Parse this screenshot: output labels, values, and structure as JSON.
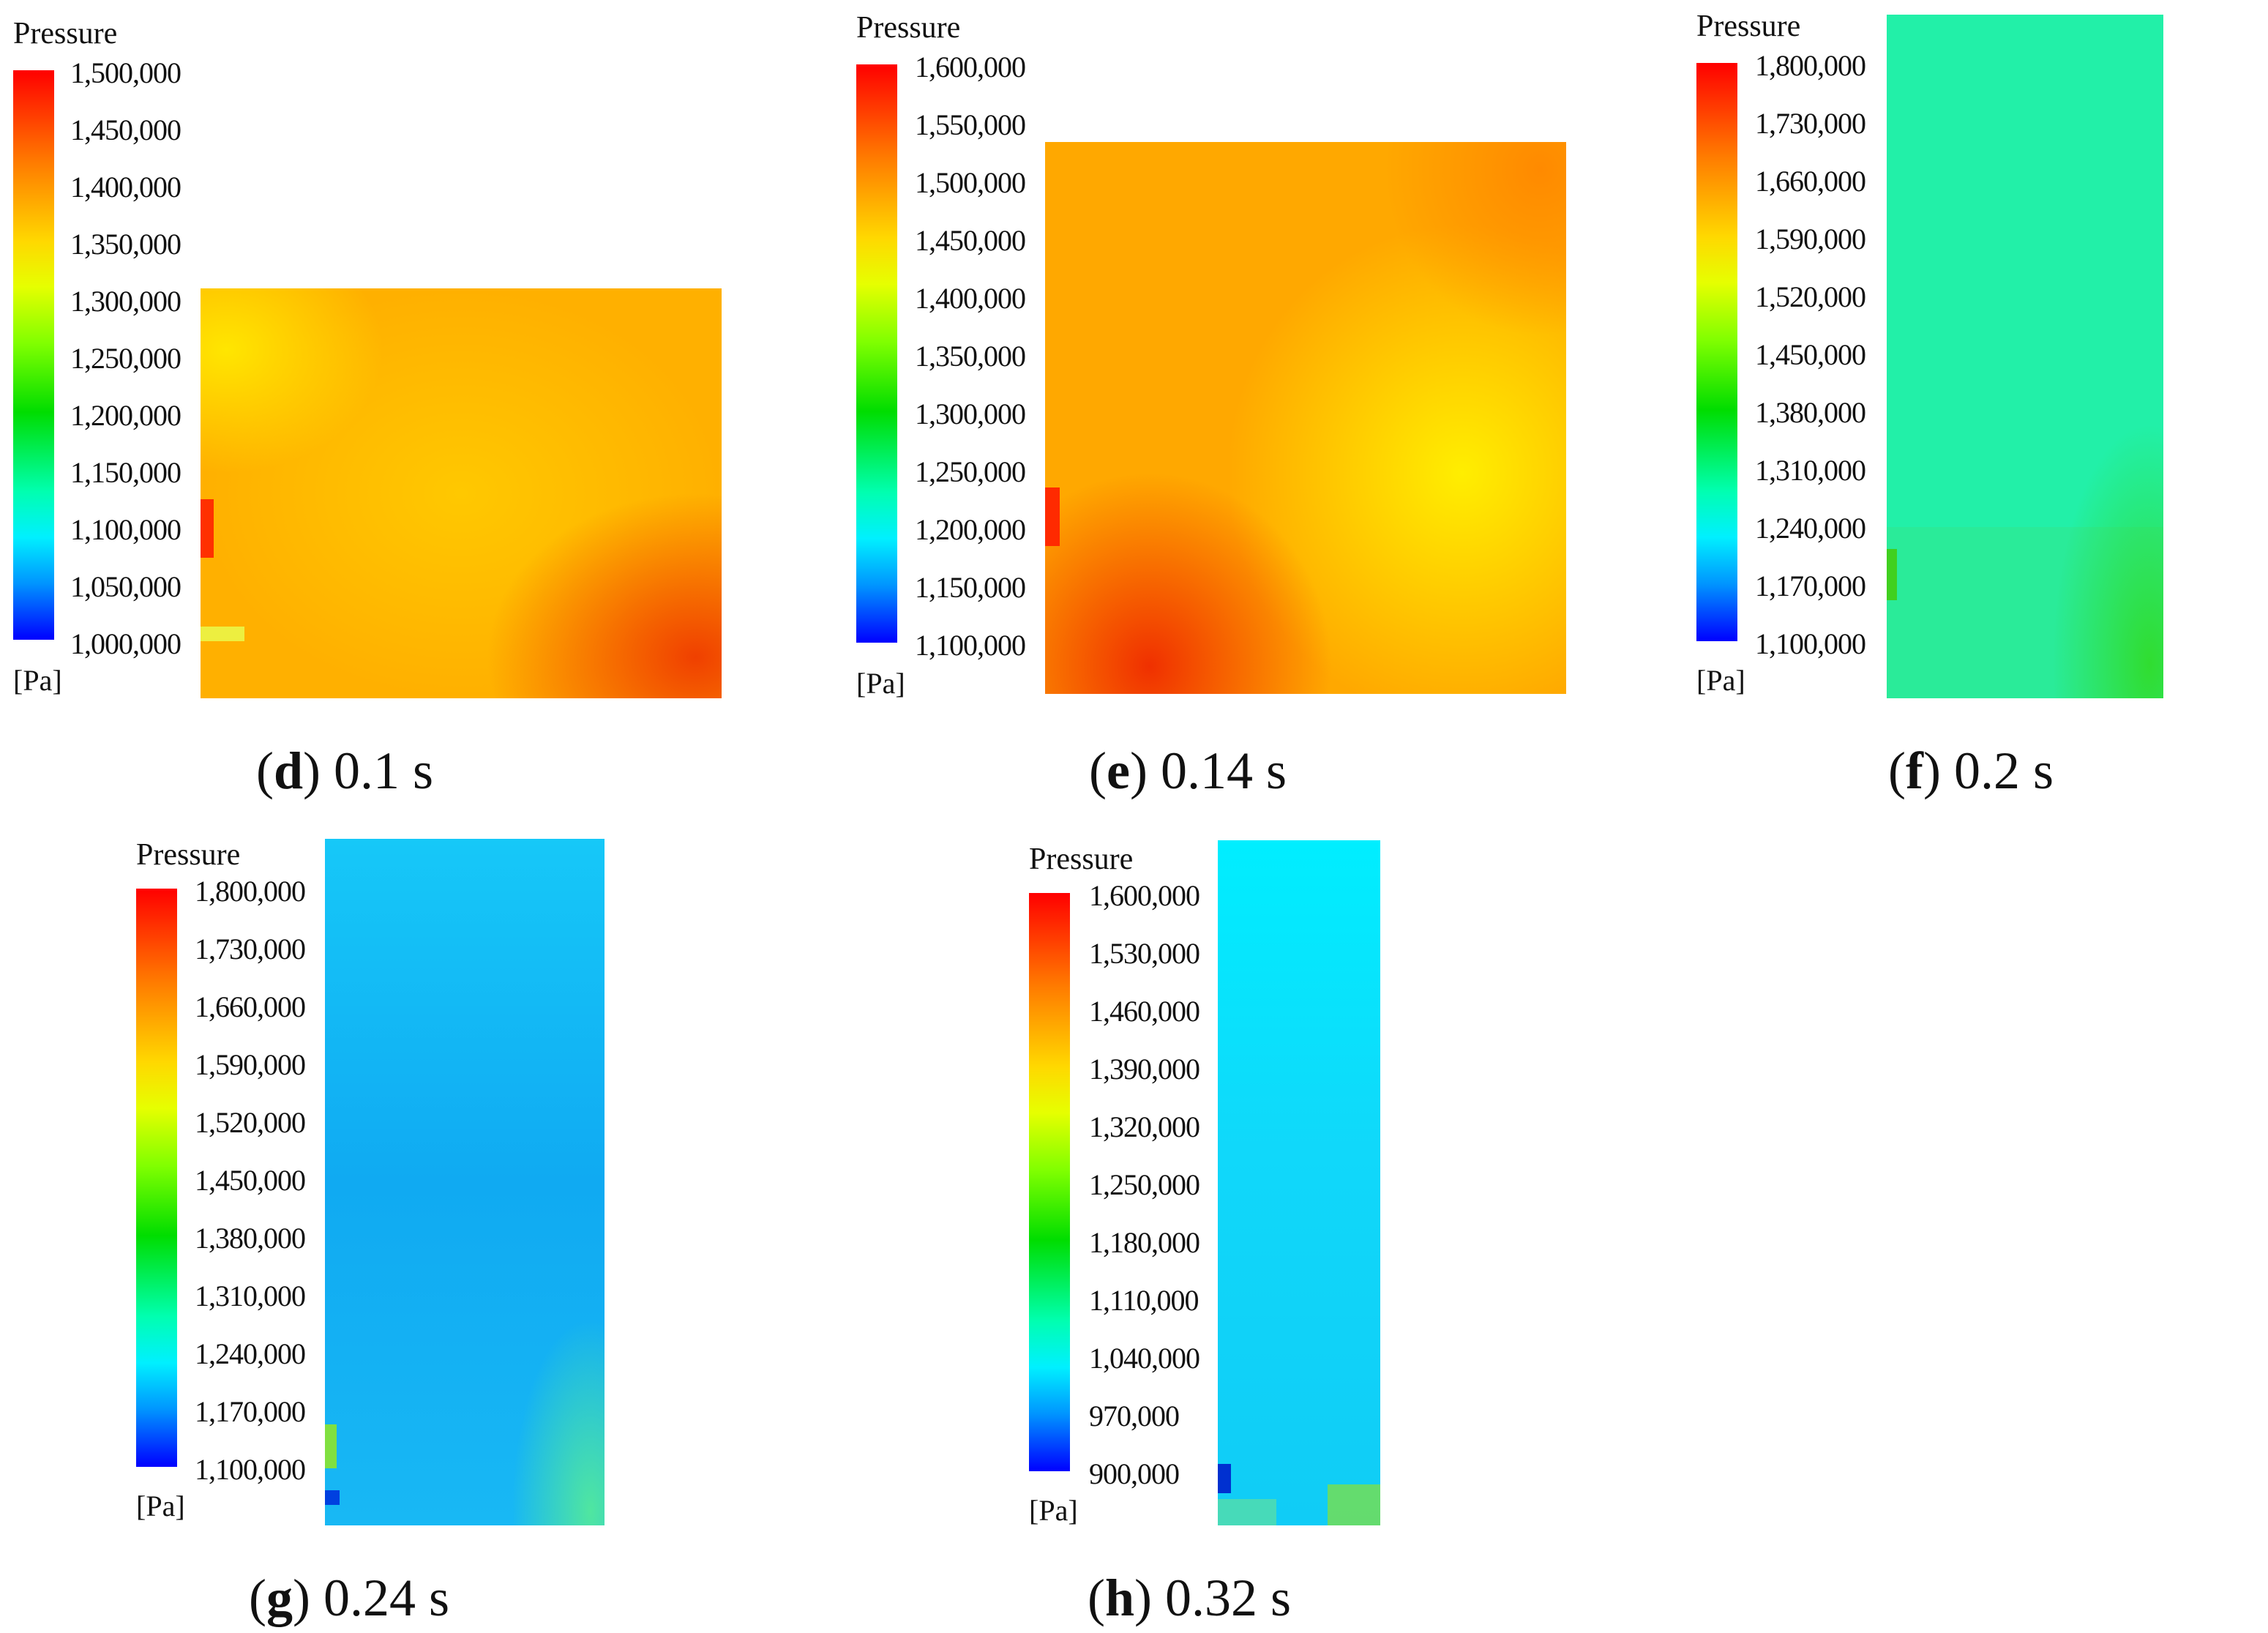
{
  "panels": [
    {
      "id": "d",
      "legend_title": "Pressure",
      "unit": "[Pa]",
      "ticks": [
        "1,500,000",
        "1,450,000",
        "1,400,000",
        "1,350,000",
        "1,300,000",
        "1,250,000",
        "1,200,000",
        "1,150,000",
        "1,100,000",
        "1,050,000",
        "1,000,000"
      ],
      "caption_letter": "d",
      "caption_time": " 0.1 s"
    },
    {
      "id": "e",
      "legend_title": "Pressure",
      "unit": "[Pa]",
      "ticks": [
        "1,600,000",
        "1,550,000",
        "1,500,000",
        "1,450,000",
        "1,400,000",
        "1,350,000",
        "1,300,000",
        "1,250,000",
        "1,200,000",
        "1,150,000",
        "1,100,000"
      ],
      "caption_letter": "e",
      "caption_time": " 0.14 s"
    },
    {
      "id": "f",
      "legend_title": "Pressure",
      "unit": "[Pa]",
      "ticks": [
        "1,800,000",
        "1,730,000",
        "1,660,000",
        "1,590,000",
        "1,520,000",
        "1,450,000",
        "1,380,000",
        "1,310,000",
        "1,240,000",
        "1,170,000",
        "1,100,000"
      ],
      "caption_letter": "f",
      "caption_time": " 0.2 s"
    },
    {
      "id": "g",
      "legend_title": "Pressure",
      "unit": "[Pa]",
      "ticks": [
        "1,800,000",
        "1,730,000",
        "1,660,000",
        "1,590,000",
        "1,520,000",
        "1,450,000",
        "1,380,000",
        "1,310,000",
        "1,240,000",
        "1,170,000",
        "1,100,000"
      ],
      "caption_letter": "g",
      "caption_time": " 0.24 s"
    },
    {
      "id": "h",
      "legend_title": "Pressure",
      "unit": "[Pa]",
      "ticks": [
        "1,600,000",
        "1,530,000",
        "1,460,000",
        "1,390,000",
        "1,320,000",
        "1,250,000",
        "1,180,000",
        "1,110,000",
        "1,040,000",
        "970,000",
        "900,000"
      ],
      "caption_letter": "h",
      "caption_time": " 0.32 s"
    }
  ]
}
